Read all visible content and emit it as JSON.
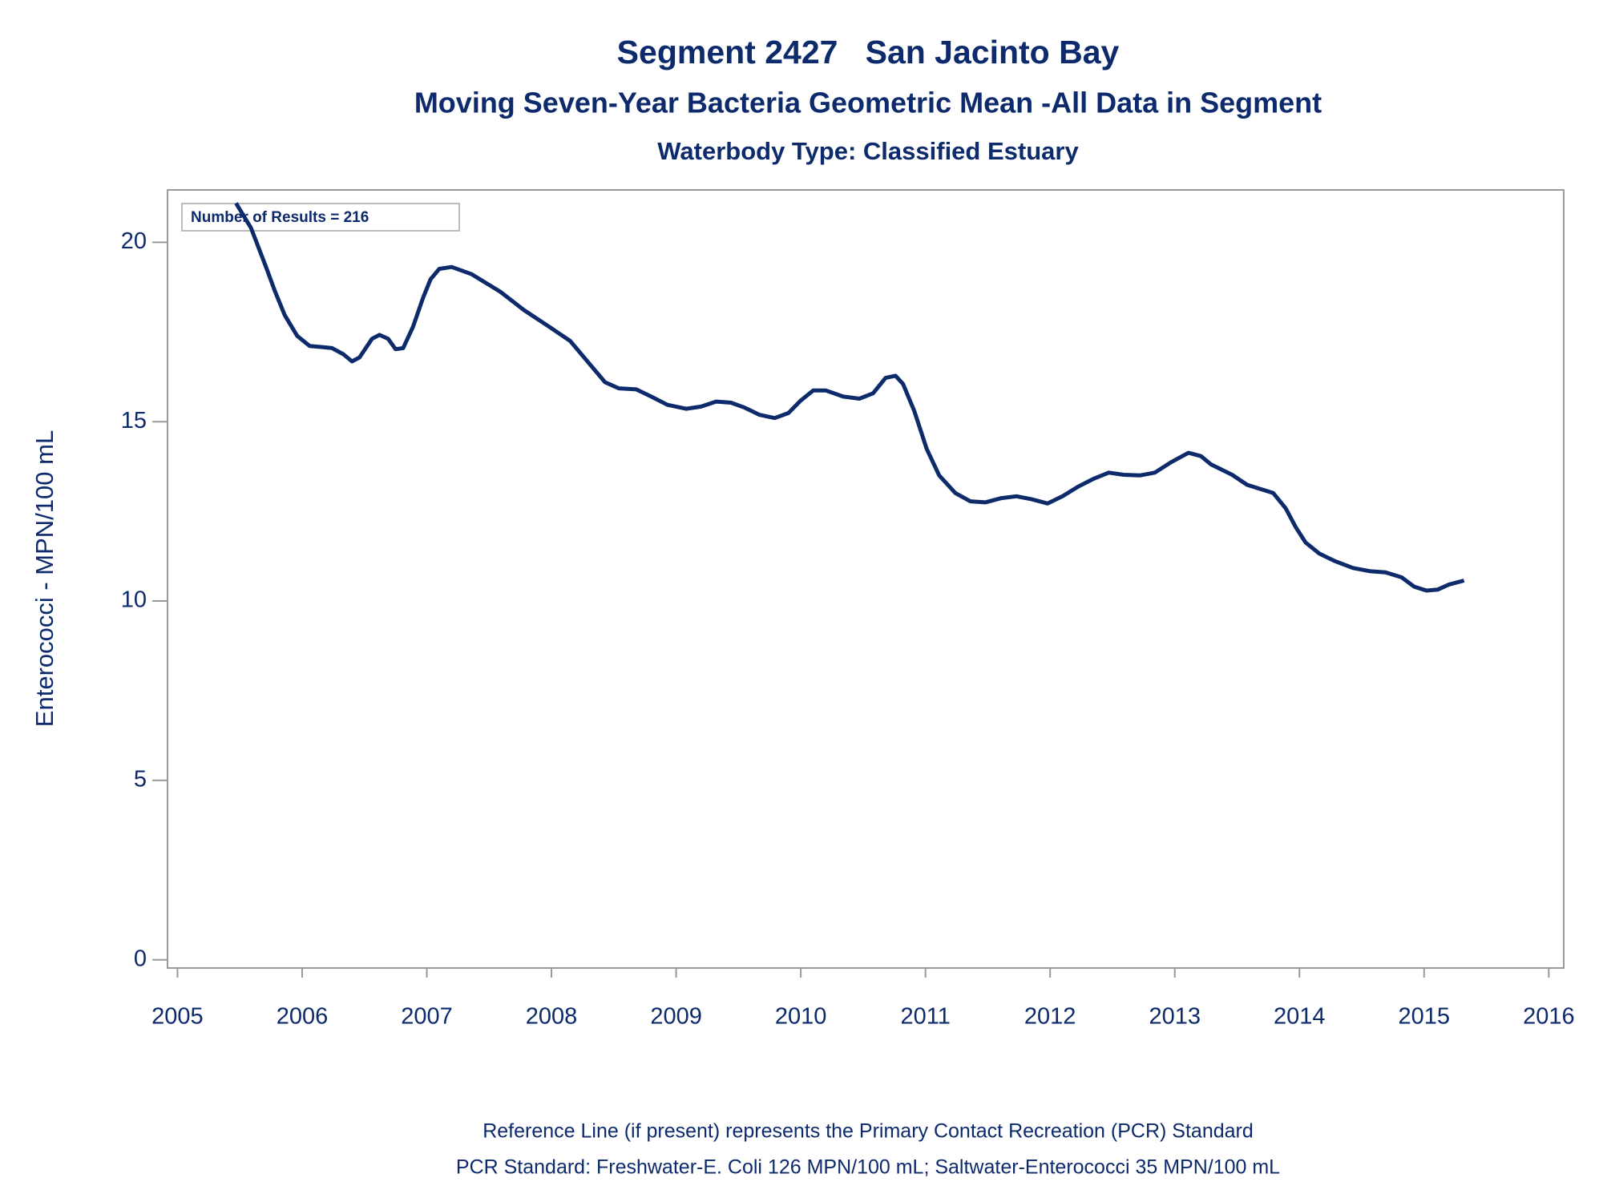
{
  "chart_data": {
    "type": "line",
    "title": "Segment 2427   San Jacinto Bay",
    "subtitle": "Moving Seven-Year Bacteria Geometric Mean -All Data in Segment",
    "subtitle2": "Waterbody Type: Classified Estuary",
    "annotation": "Number of Results = 216",
    "ylabel": "Enterococci - MPN/100 mL",
    "footnotes": [
      "Reference Line (if present) represents the Primary Contact Recreation (PCR) Standard",
      "PCR Standard: Freshwater-E. Coli 126 MPN/100 mL; Saltwater-Enterococci 35 MPN/100 mL"
    ],
    "xlim": [
      2004.92,
      2016.12
    ],
    "xticks": [
      2005,
      2006,
      2007,
      2008,
      2009,
      2010,
      2011,
      2012,
      2013,
      2014,
      2015,
      2016
    ],
    "ylim": [
      -0.23,
      21.46
    ],
    "yticks": [
      0,
      5,
      10,
      15,
      20
    ],
    "x": [
      2005.47,
      2005.59,
      2005.71,
      2005.78,
      2005.86,
      2005.96,
      2006.06,
      2006.16,
      2006.24,
      2006.33,
      2006.4,
      2006.46,
      2006.56,
      2006.62,
      2006.69,
      2006.75,
      2006.81,
      2006.89,
      2006.97,
      2007.03,
      2007.1,
      2007.2,
      2007.36,
      2007.59,
      2007.78,
      2007.98,
      2008.15,
      2008.31,
      2008.43,
      2008.54,
      2008.68,
      2008.8,
      2008.93,
      2009.08,
      2009.2,
      2009.32,
      2009.44,
      2009.55,
      2009.67,
      2009.79,
      2009.9,
      2010.0,
      2010.1,
      2010.2,
      2010.34,
      2010.47,
      2010.58,
      2010.68,
      2010.76,
      2010.82,
      2010.91,
      2011.01,
      2011.11,
      2011.24,
      2011.36,
      2011.48,
      2011.61,
      2011.73,
      2011.85,
      2011.98,
      2012.1,
      2012.22,
      2012.35,
      2012.47,
      2012.59,
      2012.72,
      2012.84,
      2012.97,
      2013.11,
      2013.21,
      2013.29,
      2013.46,
      2013.58,
      2013.69,
      2013.79,
      2013.89,
      2013.97,
      2014.05,
      2014.16,
      2014.28,
      2014.43,
      2014.57,
      2014.69,
      2014.82,
      2014.92,
      2015.02,
      2015.11,
      2015.2,
      2015.32
    ],
    "series": [
      {
        "name": "Geometric Mean",
        "color": "#0d2a6b",
        "values": [
          21.09,
          20.4,
          19.31,
          18.65,
          17.97,
          17.39,
          17.11,
          17.08,
          17.05,
          16.88,
          16.68,
          16.79,
          17.31,
          17.42,
          17.31,
          17.02,
          17.05,
          17.65,
          18.45,
          18.97,
          19.26,
          19.31,
          19.11,
          18.62,
          18.11,
          17.65,
          17.25,
          16.59,
          16.1,
          15.93,
          15.9,
          15.7,
          15.47,
          15.36,
          15.42,
          15.56,
          15.53,
          15.39,
          15.19,
          15.1,
          15.24,
          15.59,
          15.87,
          15.87,
          15.7,
          15.64,
          15.79,
          16.22,
          16.28,
          16.05,
          15.3,
          14.24,
          13.5,
          13.01,
          12.78,
          12.75,
          12.87,
          12.92,
          12.84,
          12.72,
          12.92,
          13.18,
          13.41,
          13.58,
          13.52,
          13.5,
          13.58,
          13.87,
          14.13,
          14.04,
          13.81,
          13.52,
          13.24,
          13.12,
          13.01,
          12.58,
          12.06,
          11.63,
          11.32,
          11.12,
          10.92,
          10.83,
          10.8,
          10.66,
          10.4,
          10.29,
          10.32,
          10.46,
          10.57
        ]
      }
    ],
    "grid": false
  }
}
